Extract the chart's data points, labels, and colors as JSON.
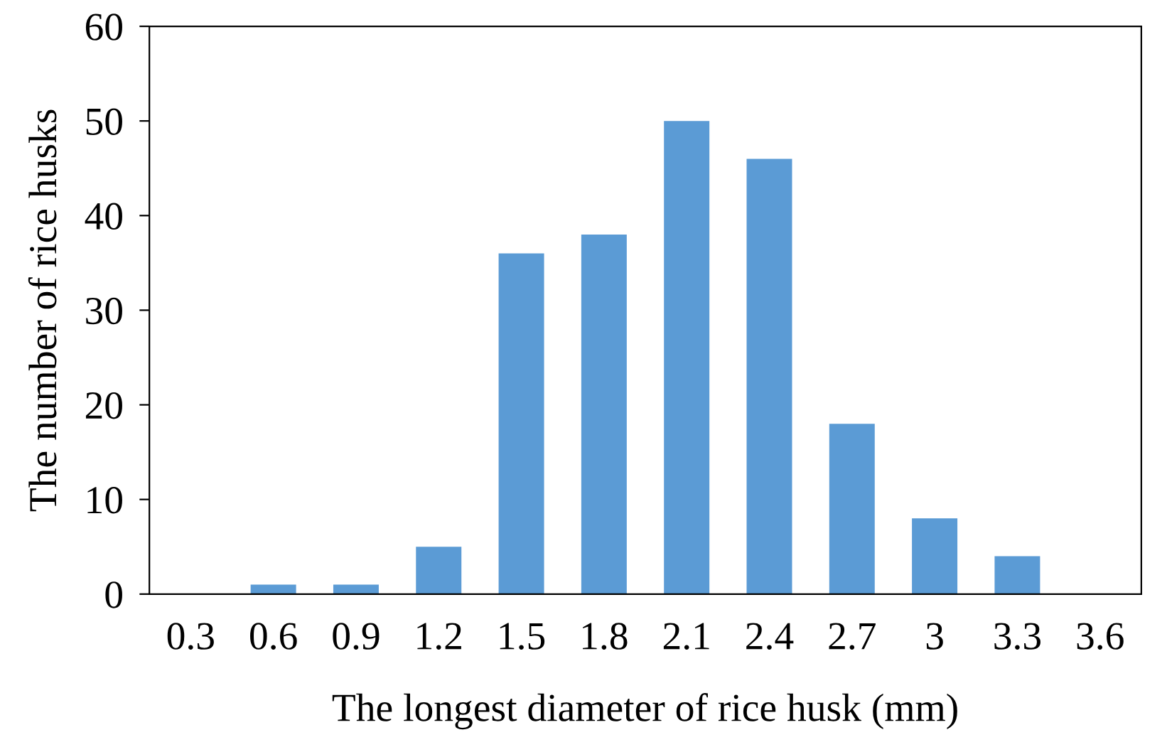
{
  "chart_data": {
    "type": "bar",
    "xlabel": "The longest diameter of rice husk (mm)",
    "ylabel": "The number of rice husks",
    "categories": [
      "0.3",
      "0.6",
      "0.9",
      "1.2",
      "1.5",
      "1.8",
      "2.1",
      "2.4",
      "2.7",
      "3",
      "3.3",
      "3.6"
    ],
    "values": [
      0,
      1,
      1,
      5,
      36,
      38,
      50,
      46,
      18,
      8,
      4,
      0
    ],
    "color": "#5b9bd5",
    "ylim": [
      0,
      60
    ],
    "yticks": [
      0,
      10,
      20,
      30,
      40,
      50,
      60
    ],
    "grid": false
  }
}
